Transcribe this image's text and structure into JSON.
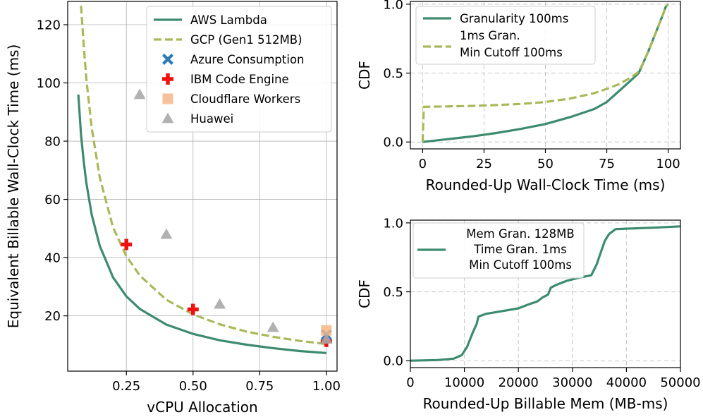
{
  "colors": {
    "aws": "#3d8b6e",
    "gcp": "#a9b95a",
    "azure": "#2c7bb6",
    "ibm": "#ee1111",
    "cloudflare": "#f6b78a",
    "huawei": "#a8a8a8"
  },
  "chart_data": [
    {
      "type": "scatter",
      "xlabel": "vCPU Allocation",
      "ylabel": "Equivalent Billable Wall-Clock Time (ms)",
      "xlim": [
        0.03,
        1.04
      ],
      "ylim": [
        1,
        128
      ],
      "xticks": [
        0.25,
        0.5,
        0.75,
        1.0
      ],
      "xtick_labels": [
        "0.25",
        "0.50",
        "0.75",
        "1.00"
      ],
      "yticks": [
        20,
        40,
        60,
        80,
        100,
        120
      ],
      "ytick_labels": [
        "20",
        "40",
        "60",
        "80",
        "100",
        "120"
      ],
      "grid": true,
      "legend_position": "top-right",
      "series": [
        {
          "name": "AWS Lambda",
          "kind": "line",
          "style": "solid",
          "color_key": "aws",
          "x": [
            0.07,
            0.08,
            0.09,
            0.1,
            0.12,
            0.15,
            0.2,
            0.25,
            0.3,
            0.4,
            0.5,
            0.6,
            0.7,
            0.8,
            0.9,
            1.0
          ],
          "y": [
            96,
            82.2,
            73.1,
            65.6,
            54.8,
            44.1,
            33.2,
            26.7,
            22.4,
            17.0,
            13.8,
            11.6,
            10.1,
            8.9,
            7.9,
            7.2
          ]
        },
        {
          "name": "GCP (Gen1 512MB)",
          "kind": "line",
          "style": "dashed",
          "color_key": "gcp",
          "x": [
            0.08,
            0.09,
            0.1,
            0.12,
            0.15,
            0.2,
            0.25,
            0.3,
            0.4,
            0.5,
            0.6,
            0.7,
            0.8,
            0.9,
            1.0
          ],
          "y": [
            126.5,
            113.0,
            101.2,
            84.6,
            67.6,
            50.4,
            40.5,
            33.9,
            25.5,
            20.5,
            17.1,
            14.6,
            12.8,
            11.4,
            10.3
          ]
        },
        {
          "name": "Azure Consumption",
          "kind": "marker",
          "marker": "x",
          "color_key": "azure",
          "x": [
            1.0
          ],
          "y": [
            13.5
          ]
        },
        {
          "name": "IBM Code Engine",
          "kind": "marker",
          "marker": "plus",
          "color_key": "ibm",
          "x": [
            0.25,
            0.5,
            1.0
          ],
          "y": [
            44.5,
            22.2,
            11.2
          ]
        },
        {
          "name": "Cloudflare Workers",
          "kind": "marker",
          "marker": "square",
          "color_key": "cloudflare",
          "x": [
            1.0
          ],
          "y": [
            15.0
          ]
        },
        {
          "name": "Huawei",
          "kind": "marker",
          "marker": "triangle",
          "color_key": "huawei",
          "x": [
            0.3,
            0.4,
            0.6,
            0.8,
            1.0
          ],
          "y": [
            96,
            48,
            24,
            16,
            12
          ]
        }
      ]
    },
    {
      "type": "line",
      "xlabel": "Rounded-Up Wall-Clock Time (ms)",
      "ylabel": "CDF",
      "xlim": [
        -5,
        105
      ],
      "ylim": [
        -0.05,
        1.02
      ],
      "xticks": [
        0,
        25,
        50,
        75,
        100
      ],
      "xtick_labels": [
        "0",
        "25",
        "50",
        "75",
        "100"
      ],
      "yticks": [
        0.0,
        0.5,
        1.0
      ],
      "ytick_labels": [
        "0.0",
        "0.5",
        "1.0"
      ],
      "grid": true,
      "legend_position": "top-left",
      "series": [
        {
          "name": "Granularity 100ms",
          "style": "solid",
          "color_key": "aws",
          "x": [
            0,
            10,
            20,
            30,
            40,
            50,
            60,
            70,
            75,
            80,
            85,
            88,
            90,
            92,
            94,
            96,
            98,
            99,
            100
          ],
          "y": [
            0,
            0.02,
            0.04,
            0.065,
            0.095,
            0.13,
            0.18,
            0.24,
            0.29,
            0.37,
            0.45,
            0.5,
            0.58,
            0.66,
            0.75,
            0.84,
            0.93,
            0.98,
            1.0
          ]
        },
        {
          "name": "1ms Gran. Min Cutoff 100ms",
          "style": "dashed",
          "color_key": "gcp",
          "x": [
            0,
            0.5,
            10,
            20,
            30,
            40,
            50,
            60,
            70,
            75,
            80,
            85,
            88,
            90,
            92,
            94,
            96,
            98,
            99,
            100
          ],
          "y": [
            0,
            0.255,
            0.258,
            0.262,
            0.268,
            0.276,
            0.29,
            0.315,
            0.355,
            0.385,
            0.42,
            0.47,
            0.51,
            0.58,
            0.66,
            0.75,
            0.84,
            0.93,
            0.98,
            1.0
          ]
        }
      ]
    },
    {
      "type": "line",
      "xlabel": "Rounded-Up Billable Mem (MB-ms)",
      "ylabel": "CDF",
      "xlim": [
        0,
        50000
      ],
      "ylim": [
        -0.05,
        1.02
      ],
      "xticks": [
        0,
        10000,
        20000,
        30000,
        40000,
        50000
      ],
      "xtick_labels": [
        "0",
        "10000",
        "20000",
        "30000",
        "40000",
        "50000"
      ],
      "yticks": [
        0.0,
        0.5,
        1.0
      ],
      "ytick_labels": [
        "0.0",
        "0.5",
        "1.0"
      ],
      "grid": true,
      "legend_position": "top-left",
      "series": [
        {
          "name": "Mem Gran. 128MB Time Gran. 1ms Min Cutoff 100ms",
          "style": "solid",
          "color_key": "aws",
          "x": [
            0,
            5000,
            8000,
            9500,
            10500,
            11500,
            12300,
            12600,
            14000,
            17000,
            20000,
            22000,
            23500,
            24500,
            25500,
            26000,
            27000,
            29000,
            31000,
            33500,
            34500,
            35200,
            36000,
            36800,
            37500,
            38000,
            40000,
            45000,
            50000
          ],
          "y": [
            0,
            0.005,
            0.015,
            0.04,
            0.1,
            0.2,
            0.27,
            0.32,
            0.34,
            0.36,
            0.38,
            0.41,
            0.43,
            0.46,
            0.48,
            0.53,
            0.55,
            0.58,
            0.6,
            0.62,
            0.7,
            0.78,
            0.87,
            0.92,
            0.94,
            0.955,
            0.958,
            0.965,
            0.975
          ]
        }
      ]
    }
  ],
  "legends": [
    {
      "entries": [
        "AWS Lambda",
        "GCP (Gen1 512MB)",
        "Azure Consumption",
        "IBM Code Engine",
        "Cloudflare Workers",
        "Huawei"
      ]
    },
    {
      "entries": [
        [
          "Granularity 100ms"
        ],
        [
          "1ms Gran.",
          "Min Cutoff 100ms"
        ]
      ]
    },
    {
      "entries": [
        [
          "Mem Gran. 128MB",
          "Time Gran. 1ms",
          "Min Cutoff 100ms"
        ]
      ]
    }
  ]
}
